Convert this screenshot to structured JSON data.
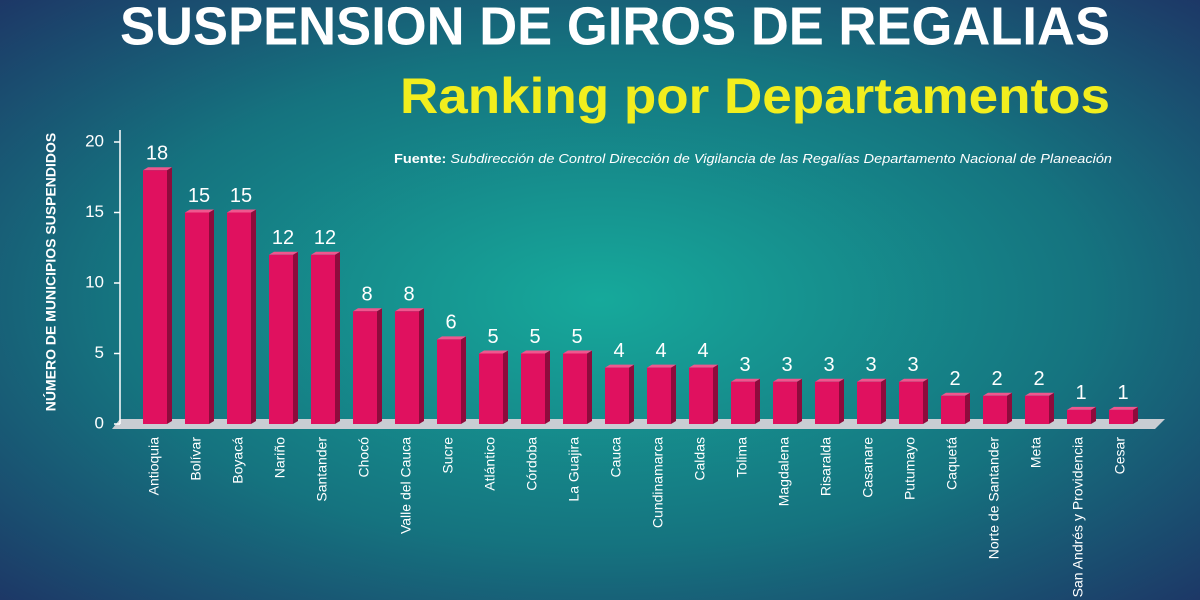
{
  "chart_data": {
    "type": "bar",
    "title": "SUSPENSION DE GIROS DE REGALIAS",
    "subtitle": "Ranking por Departamentos",
    "source_label": "Fuente:",
    "source": "Subdirección de Control Dirección de Vigilancia de las Regalías Departamento Nacional de Planeación",
    "y_label": "NÚMERO DE MUNICIPIOS SUSPENDIDOS",
    "categories": [
      "Antioquia",
      "Bolívar",
      "Boyacá",
      "Nariño",
      "Santander",
      "Chocó",
      "Valle del Cauca",
      "Sucre",
      "Atlántico",
      "Córdoba",
      "La Guajira",
      "Cauca",
      "Cundinamarca",
      "Caldas",
      "Tolima",
      "Magdalena",
      "Risaralda",
      "Casanare",
      "Putumayo",
      "Caquetá",
      "Norte de Santander",
      "Meta",
      "San Andrés y Providencia",
      "Cesar"
    ],
    "values": [
      18,
      15,
      15,
      12,
      12,
      8,
      8,
      6,
      5,
      5,
      5,
      4,
      4,
      4,
      3,
      3,
      3,
      3,
      3,
      2,
      2,
      2,
      1,
      1
    ],
    "color": "#e0115f",
    "ylim": [
      0,
      20
    ],
    "yticks": [
      0,
      5,
      10,
      15,
      20
    ]
  }
}
